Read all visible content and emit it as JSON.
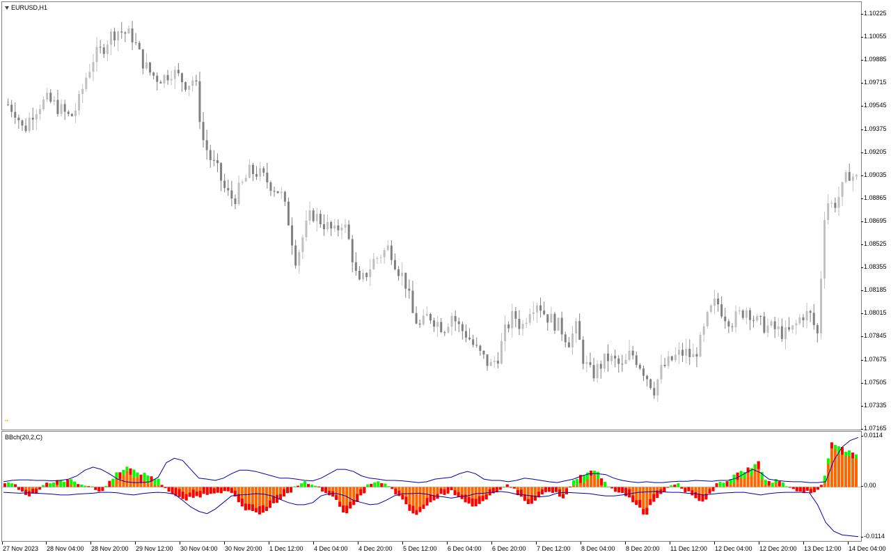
{
  "window": {
    "symbol_label": "EURUSD,H1",
    "indicator_label": "BBch(20,2,C)"
  },
  "price_scale": [
    "1.10225",
    "1.10055",
    "1.09885",
    "1.09715",
    "1.09545",
    "1.09375",
    "1.09205",
    "1.09035",
    "1.08865",
    "1.08695",
    "1.08525",
    "1.08355",
    "1.08185",
    "1.08015",
    "1.07845",
    "1.07675",
    "1.07505",
    "1.07335",
    "1.07165"
  ],
  "indicator_scale": [
    "0.0114",
    "0.00",
    "-0.0114"
  ],
  "time_scale": [
    "27 Nov 2023",
    "28 Nov 04:00",
    "28 Nov 20:00",
    "29 Nov 12:00",
    "30 Nov 04:00",
    "30 Nov 20:00",
    "1 Dec 12:00",
    "4 Dec 04:00",
    "4 Dec 20:00",
    "5 Dec 12:00",
    "6 Dec 04:00",
    "6 Dec 20:00",
    "7 Dec 12:00",
    "8 Dec 04:00",
    "8 Dec 20:00",
    "11 Dec 12:00",
    "12 Dec 04:00",
    "12 Dec 20:00",
    "13 Dec 12:00",
    "14 Dec 04:00"
  ],
  "colors": {
    "bull_candle": "#c0c0c0",
    "bear_candle": "#808080",
    "hist_up": "#00ff00",
    "hist_down": "#ff0000",
    "hist_fill": "#ff6600",
    "bands": "#0000aa",
    "background": "#ffffff"
  },
  "chart_data": [
    {
      "type": "candlestick",
      "title": "EURUSD,H1",
      "ylim": [
        1.07165,
        1.10225
      ],
      "x_labels": [
        "27 Nov 2023",
        "28 Nov 04:00",
        "28 Nov 20:00",
        "29 Nov 12:00",
        "30 Nov 04:00",
        "30 Nov 20:00",
        "1 Dec 12:00",
        "4 Dec 04:00",
        "4 Dec 20:00",
        "5 Dec 12:00",
        "6 Dec 04:00",
        "6 Dec 20:00",
        "7 Dec 12:00",
        "8 Dec 04:00",
        "8 Dec 20:00",
        "11 Dec 12:00",
        "12 Dec 04:00",
        "12 Dec 20:00",
        "13 Dec 12:00",
        "14 Dec 04:00"
      ],
      "close_path": [
        1.0955,
        1.095,
        1.0935,
        1.0948,
        1.0955,
        1.0958,
        1.0955,
        1.095,
        1.0945,
        1.0955,
        1.0975,
        1.099,
        1.0995,
        1.1005,
        1.101,
        1.1008,
        1.1005,
        1.099,
        1.098,
        1.0975,
        1.0975,
        1.098,
        1.0975,
        1.097,
        1.0975,
        1.093,
        1.0915,
        1.0905,
        1.089,
        1.0885,
        1.0895,
        1.0905,
        1.0905,
        1.09,
        1.0895,
        1.089,
        1.087,
        1.084,
        1.086,
        1.0875,
        1.087,
        1.0865,
        1.086,
        1.087,
        1.085,
        1.082,
        1.083,
        1.084,
        1.0845,
        1.085,
        1.0835,
        1.0825,
        1.08,
        1.079,
        1.08,
        1.0795,
        1.079,
        1.08,
        1.079,
        1.0785,
        1.0775,
        1.0768,
        1.0762,
        1.077,
        1.079,
        1.08,
        1.079,
        1.0805,
        1.081,
        1.08,
        1.0795,
        1.079,
        1.078,
        1.079,
        1.0765,
        1.0755,
        1.0762,
        1.0768,
        1.0765,
        1.076,
        1.0772,
        1.0765,
        1.0755,
        1.0745,
        1.076,
        1.0765,
        1.077,
        1.0772,
        1.0768,
        1.078,
        1.08,
        1.081,
        1.08,
        1.0795,
        1.08,
        1.0805,
        1.0795,
        1.0792,
        1.079,
        1.0788,
        1.0785,
        1.079,
        1.08,
        1.08,
        1.0785,
        1.0885,
        1.088,
        1.089,
        1.0905,
        1.09
      ]
    },
    {
      "type": "bar",
      "title": "BBch(20,2,C)",
      "ylim": [
        -0.0114,
        0.0114
      ],
      "histogram": [
        0.001,
        0.001,
        -0.001,
        -0.002,
        -0.001,
        0.001,
        0.001,
        0.0015,
        0.0015,
        0.001,
        0.0005,
        -0.0005,
        -0.001,
        0.0015,
        0.0035,
        0.0045,
        0.0035,
        0.003,
        0.0025,
        0.0015,
        -0.0005,
        -0.002,
        -0.003,
        -0.0025,
        -0.002,
        -0.0015,
        -0.001,
        -0.001,
        -0.0015,
        -0.004,
        -0.0055,
        -0.006,
        -0.0055,
        -0.004,
        -0.003,
        -0.0015,
        0.0005,
        0.001,
        0.0005,
        -0.0005,
        -0.0015,
        -0.0035,
        -0.006,
        -0.0045,
        -0.002,
        0.001,
        0.001,
        0.0005,
        -0.001,
        -0.003,
        -0.0055,
        -0.0065,
        -0.004,
        -0.003,
        -0.0015,
        -0.001,
        -0.002,
        -0.0035,
        -0.0045,
        -0.0035,
        -0.002,
        -0.001,
        0.001,
        -0.001,
        -0.003,
        -0.004,
        -0.002,
        -0.001,
        -0.0015,
        -0.003,
        0.001,
        0.0025,
        0.0035,
        0.0035,
        0.0015,
        -0.001,
        -0.0015,
        -0.0025,
        -0.004,
        -0.0065,
        -0.003,
        -0.0015,
        0.0005,
        0.001,
        -0.001,
        -0.002,
        -0.0035,
        -0.0015,
        0.001,
        0.0015,
        0.0025,
        0.0035,
        0.0045,
        0.0055,
        0.001,
        0.0015,
        0.001,
        -0.0005,
        -0.001,
        -0.001,
        -0.0015,
        0.0015,
        0.0105,
        0.009,
        0.008,
        0.007
      ],
      "upper_band": [
        0.0012,
        0.0015,
        0.0016,
        0.0016,
        0.0015,
        0.0015,
        0.0014,
        0.0015,
        0.0018,
        0.0025,
        0.0038,
        0.0045,
        0.004,
        0.003,
        0.0018,
        0.0012,
        0.001,
        0.001,
        0.0012,
        0.0022,
        0.0055,
        0.0065,
        0.006,
        0.004,
        0.002,
        0.0018,
        0.0015,
        0.002,
        0.003,
        0.0038,
        0.0038,
        0.0035,
        0.003,
        0.0025,
        0.002,
        0.002,
        0.0018,
        0.0015,
        0.0014,
        0.002,
        0.003,
        0.004,
        0.004,
        0.0035,
        0.0025,
        0.002,
        0.0018,
        0.0015,
        0.0015,
        0.0014,
        0.0012,
        0.001,
        0.0012,
        0.0018,
        0.002,
        0.0022,
        0.003,
        0.0035,
        0.003,
        0.0018,
        0.0015,
        0.0015,
        0.0012,
        0.0015,
        0.002,
        0.0018,
        0.0015,
        0.0012,
        0.001,
        0.0014,
        0.0018,
        0.0025,
        0.003,
        0.003,
        0.0028,
        0.002,
        0.0015,
        0.0012,
        0.001,
        0.0012,
        0.001,
        0.001,
        0.0012,
        0.0013,
        0.0013,
        0.0015,
        0.0014,
        0.0013,
        0.0015,
        0.0015,
        0.002,
        0.003,
        0.004,
        0.0032,
        0.0018,
        0.0015,
        0.0013,
        0.0012,
        0.0012,
        0.001,
        0.001,
        0.0012,
        0.006,
        0.009,
        0.0105,
        0.0112
      ],
      "lower_band": [
        -0.0012,
        -0.0013,
        -0.0014,
        -0.0013,
        -0.0014,
        -0.0015,
        -0.0016,
        -0.0018,
        -0.0018,
        -0.0016,
        -0.0015,
        -0.0014,
        -0.0012,
        -0.0012,
        -0.0013,
        -0.0016,
        -0.0018,
        -0.0015,
        -0.0013,
        -0.0012,
        -0.0013,
        -0.0016,
        -0.003,
        -0.0045,
        -0.0055,
        -0.006,
        -0.005,
        -0.0035,
        -0.002,
        -0.0018,
        -0.0017,
        -0.0015,
        -0.0016,
        -0.002,
        -0.0028,
        -0.0035,
        -0.004,
        -0.004,
        -0.0035,
        -0.002,
        -0.0015,
        -0.0015,
        -0.002,
        -0.003,
        -0.0035,
        -0.004,
        -0.0038,
        -0.003,
        -0.002,
        -0.0015,
        -0.0015,
        -0.0014,
        -0.0016,
        -0.002,
        -0.0022,
        -0.0025,
        -0.0022,
        -0.002,
        -0.0015,
        -0.0014,
        -0.0012,
        -0.001,
        -0.0012,
        -0.0016,
        -0.0018,
        -0.002,
        -0.0022,
        -0.002,
        -0.0014,
        -0.0012,
        -0.0013,
        -0.0014,
        -0.0015,
        -0.0018,
        -0.002,
        -0.002,
        -0.0018,
        -0.0015,
        -0.0012,
        -0.0011,
        -0.001,
        -0.0011,
        -0.0012,
        -0.0012,
        -0.0014,
        -0.0015,
        -0.0018,
        -0.0016,
        -0.0014,
        -0.0013,
        -0.0012,
        -0.0012,
        -0.0015,
        -0.0018,
        -0.0015,
        -0.0013,
        -0.0012,
        -0.0012,
        -0.0012,
        -0.0013,
        -0.004,
        -0.008,
        -0.01,
        -0.0108,
        -0.011,
        -0.0112
      ]
    }
  ]
}
